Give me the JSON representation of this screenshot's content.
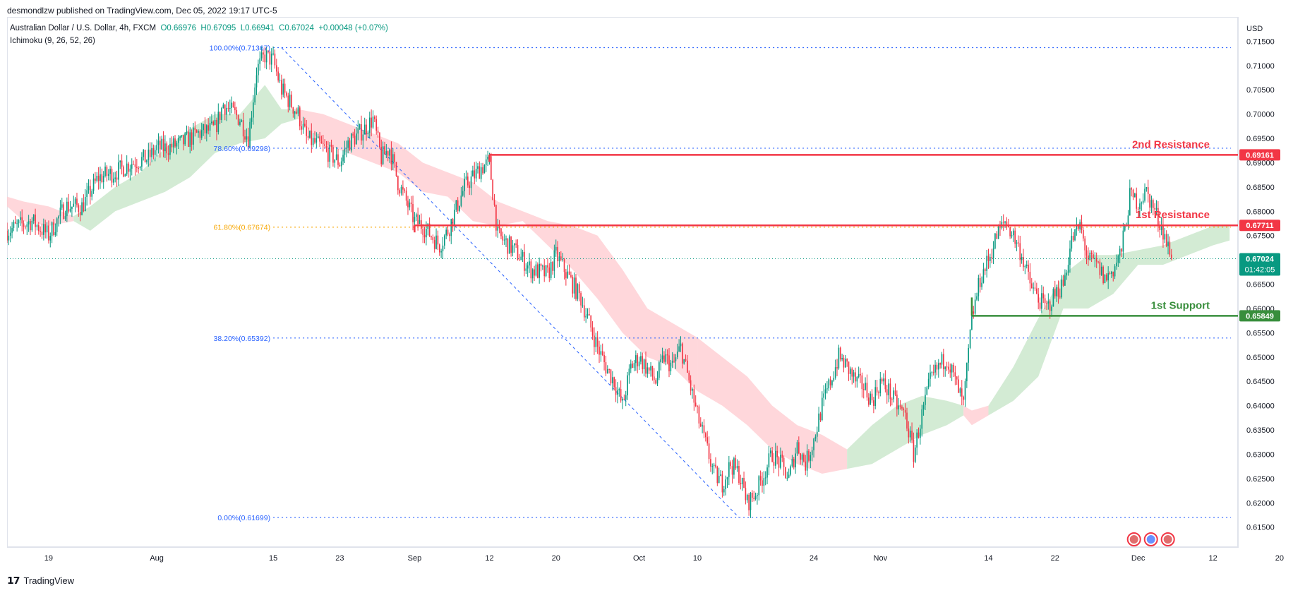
{
  "header": {
    "publisher": "desmondlzw published on TradingView.com, Dec 05, 2022 19:17 UTC-5"
  },
  "symbol": {
    "name": "Australian Dollar / U.S. Dollar, 4h, FXCM",
    "open": "O0.66976",
    "high": "H0.67095",
    "low": "L0.66941",
    "close": "C0.67024",
    "change": "+0.00048 (+0.07%)"
  },
  "indicator": "Ichimoku (9, 26, 52, 26)",
  "footer": {
    "brand": "TradingView",
    "logo": "tv-logo-icon"
  },
  "colors": {
    "up": "#089981",
    "down": "#f23645",
    "fib_blue": "#2962ff",
    "fib_orange": "#f7a600",
    "resistance": "#f23645",
    "support": "#388e3c",
    "cloud_bull": "#c8e6c9",
    "cloud_bear": "#ffcdd2"
  },
  "chart_data": {
    "type": "candlestick",
    "currency": "USD",
    "y_range": [
      0.612,
      0.717
    ],
    "y_ticks": [
      "0.71500",
      "0.71000",
      "0.70500",
      "0.70000",
      "0.69500",
      "0.69000",
      "0.68500",
      "0.68000",
      "0.67500",
      "0.67000",
      "0.66500",
      "0.66000",
      "0.65500",
      "0.65000",
      "0.64500",
      "0.64000",
      "0.63500",
      "0.63000",
      "0.62500",
      "0.62000",
      "0.61500"
    ],
    "x_ticks": [
      {
        "label": "19",
        "x": 0
      },
      {
        "label": "Aug",
        "x": 13
      },
      {
        "label": "15",
        "x": 27
      },
      {
        "label": "23",
        "x": 35
      },
      {
        "label": "Sep",
        "x": 44
      },
      {
        "label": "12",
        "x": 53
      },
      {
        "label": "20",
        "x": 61
      },
      {
        "label": "Oct",
        "x": 71
      },
      {
        "label": "10",
        "x": 78
      },
      {
        "label": "24",
        "x": 92
      },
      {
        "label": "Nov",
        "x": 100
      },
      {
        "label": "14",
        "x": 113
      },
      {
        "label": "22",
        "x": 121
      },
      {
        "label": "Dec",
        "x": 131
      },
      {
        "label": "12",
        "x": 140
      },
      {
        "label": "20",
        "x": 148
      }
    ],
    "x_range": [
      -5,
      143
    ],
    "last_x": 135,
    "price_path": [
      [
        -5,
        0.676
      ],
      [
        -2,
        0.678
      ],
      [
        0,
        0.675
      ],
      [
        2,
        0.681
      ],
      [
        4,
        0.681
      ],
      [
        6,
        0.687
      ],
      [
        8,
        0.688
      ],
      [
        10,
        0.69
      ],
      [
        12,
        0.691
      ],
      [
        13,
        0.693
      ],
      [
        14,
        0.693
      ],
      [
        16,
        0.694
      ],
      [
        18,
        0.696
      ],
      [
        20,
        0.697
      ],
      [
        21,
        0.702
      ],
      [
        23,
        0.699
      ],
      [
        24,
        0.695
      ],
      [
        25,
        0.709
      ],
      [
        26,
        0.712
      ],
      [
        27,
        0.711
      ],
      [
        28,
        0.705
      ],
      [
        30,
        0.7
      ],
      [
        31,
        0.695
      ],
      [
        33,
        0.693
      ],
      [
        35,
        0.69
      ],
      [
        36,
        0.694
      ],
      [
        38,
        0.697
      ],
      [
        39,
        0.699
      ],
      [
        40,
        0.691
      ],
      [
        41,
        0.693
      ],
      [
        42,
        0.686
      ],
      [
        43,
        0.682
      ],
      [
        44,
        0.678
      ],
      [
        45,
        0.677
      ],
      [
        46,
        0.675
      ],
      [
        47,
        0.673
      ],
      [
        48,
        0.676
      ],
      [
        50,
        0.685
      ],
      [
        52,
        0.689
      ],
      [
        53,
        0.69
      ],
      [
        54,
        0.675
      ],
      [
        56,
        0.672
      ],
      [
        57,
        0.67
      ],
      [
        58,
        0.668
      ],
      [
        60,
        0.667
      ],
      [
        61,
        0.671
      ],
      [
        63,
        0.665
      ],
      [
        64,
        0.662
      ],
      [
        66,
        0.652
      ],
      [
        67,
        0.648
      ],
      [
        68,
        0.645
      ],
      [
        69,
        0.64
      ],
      [
        70,
        0.648
      ],
      [
        71,
        0.65
      ],
      [
        73,
        0.645
      ],
      [
        74,
        0.65
      ],
      [
        75,
        0.648
      ],
      [
        76,
        0.652
      ],
      [
        77,
        0.645
      ],
      [
        78,
        0.638
      ],
      [
        79,
        0.632
      ],
      [
        80,
        0.626
      ],
      [
        81,
        0.624
      ],
      [
        82,
        0.628
      ],
      [
        83,
        0.626
      ],
      [
        84,
        0.62
      ],
      [
        85,
        0.622
      ],
      [
        86,
        0.626
      ],
      [
        87,
        0.63
      ],
      [
        88,
        0.628
      ],
      [
        89,
        0.625
      ],
      [
        90,
        0.632
      ],
      [
        91,
        0.628
      ],
      [
        92,
        0.633
      ],
      [
        93,
        0.64
      ],
      [
        94,
        0.645
      ],
      [
        95,
        0.65
      ],
      [
        96,
        0.648
      ],
      [
        97,
        0.645
      ],
      [
        98,
        0.644
      ],
      [
        99,
        0.641
      ],
      [
        100,
        0.645
      ],
      [
        101,
        0.643
      ],
      [
        102,
        0.64
      ],
      [
        103,
        0.638
      ],
      [
        104,
        0.63
      ],
      [
        105,
        0.638
      ],
      [
        106,
        0.645
      ],
      [
        107,
        0.648
      ],
      [
        108,
        0.65
      ],
      [
        109,
        0.645
      ],
      [
        110,
        0.64
      ],
      [
        111,
        0.658
      ],
      [
        112,
        0.666
      ],
      [
        113,
        0.67
      ],
      [
        114,
        0.675
      ],
      [
        115,
        0.678
      ],
      [
        116,
        0.675
      ],
      [
        117,
        0.671
      ],
      [
        118,
        0.665
      ],
      [
        119,
        0.662
      ],
      [
        120,
        0.66
      ],
      [
        121,
        0.663
      ],
      [
        122,
        0.665
      ],
      [
        123,
        0.674
      ],
      [
        124,
        0.677
      ],
      [
        125,
        0.67
      ],
      [
        126,
        0.669
      ],
      [
        127,
        0.666
      ],
      [
        128,
        0.668
      ],
      [
        129,
        0.672
      ],
      [
        130,
        0.683
      ],
      [
        131,
        0.682
      ],
      [
        132,
        0.684
      ],
      [
        133,
        0.68
      ],
      [
        134,
        0.676
      ],
      [
        135,
        0.6702
      ]
    ],
    "cloud": [
      {
        "from": -5,
        "to": 3,
        "kind": "bear",
        "points": [
          [
            -5,
            0.683,
            0.681
          ],
          [
            -3,
            0.682,
            0.678
          ],
          [
            0,
            0.681,
            0.677
          ],
          [
            3,
            0.679,
            0.678
          ]
        ]
      },
      {
        "from": 3,
        "to": 30,
        "kind": "bull",
        "points": [
          [
            3,
            0.679,
            0.678
          ],
          [
            5,
            0.681,
            0.676
          ],
          [
            8,
            0.685,
            0.68
          ],
          [
            11,
            0.688,
            0.682
          ],
          [
            14,
            0.693,
            0.684
          ],
          [
            17,
            0.697,
            0.687
          ],
          [
            20,
            0.7,
            0.692
          ],
          [
            23,
            0.7,
            0.694
          ],
          [
            26,
            0.706,
            0.695
          ],
          [
            28,
            0.701,
            0.698
          ],
          [
            30,
            0.701,
            0.699
          ]
        ]
      },
      {
        "from": 30,
        "to": 78,
        "kind": "bear",
        "points": [
          [
            30,
            0.701,
            0.699
          ],
          [
            33,
            0.7,
            0.694
          ],
          [
            36,
            0.698,
            0.692
          ],
          [
            39,
            0.696,
            0.69
          ],
          [
            42,
            0.694,
            0.688
          ],
          [
            45,
            0.69,
            0.684
          ],
          [
            48,
            0.688,
            0.683
          ],
          [
            51,
            0.686,
            0.678
          ],
          [
            54,
            0.682,
            0.677
          ],
          [
            57,
            0.68,
            0.678
          ],
          [
            60,
            0.678,
            0.673
          ],
          [
            63,
            0.677,
            0.668
          ],
          [
            66,
            0.675,
            0.662
          ],
          [
            69,
            0.668,
            0.655
          ],
          [
            72,
            0.66,
            0.65
          ],
          [
            75,
            0.657,
            0.648
          ],
          [
            78,
            0.654,
            0.643
          ]
        ]
      },
      {
        "from": 78,
        "to": 96,
        "kind": "bear",
        "points": [
          [
            78,
            0.654,
            0.643
          ],
          [
            81,
            0.65,
            0.64
          ],
          [
            84,
            0.646,
            0.636
          ],
          [
            87,
            0.64,
            0.631
          ],
          [
            90,
            0.636,
            0.628
          ],
          [
            93,
            0.634,
            0.626
          ],
          [
            96,
            0.631,
            0.627
          ]
        ]
      },
      {
        "from": 96,
        "to": 110,
        "kind": "bull",
        "points": [
          [
            96,
            0.631,
            0.627
          ],
          [
            99,
            0.636,
            0.628
          ],
          [
            102,
            0.64,
            0.631
          ],
          [
            105,
            0.642,
            0.634
          ],
          [
            108,
            0.641,
            0.636
          ],
          [
            110,
            0.64,
            0.638
          ]
        ]
      },
      {
        "from": 110,
        "to": 113,
        "kind": "bear",
        "points": [
          [
            110,
            0.64,
            0.638
          ],
          [
            111,
            0.639,
            0.636
          ],
          [
            113,
            0.64,
            0.638
          ]
        ]
      },
      {
        "from": 113,
        "to": 142,
        "kind": "bull",
        "points": [
          [
            113,
            0.64,
            0.638
          ],
          [
            116,
            0.648,
            0.641
          ],
          [
            119,
            0.658,
            0.646
          ],
          [
            122,
            0.667,
            0.66
          ],
          [
            125,
            0.671,
            0.66
          ],
          [
            128,
            0.671,
            0.663
          ],
          [
            131,
            0.672,
            0.669
          ],
          [
            134,
            0.673,
            0.669
          ],
          [
            137,
            0.675,
            0.671
          ],
          [
            140,
            0.677,
            0.673
          ],
          [
            142,
            0.677,
            0.674
          ]
        ]
      }
    ],
    "fib": [
      {
        "label": "100.00%(0.71367)",
        "y": 0.71367,
        "color": "blue"
      },
      {
        "label": "78.60%(0.69298)",
        "y": 0.69298,
        "color": "blue"
      },
      {
        "label": "61.80%(0.67674)",
        "y": 0.67674,
        "color": "orange"
      },
      {
        "label": "38.20%(0.65392)",
        "y": 0.65392,
        "color": "blue"
      },
      {
        "label": "0.00%(0.61699)",
        "y": 0.61699,
        "color": "blue"
      }
    ],
    "fib_start_x": 27,
    "trend_line": [
      [
        28,
        0.71367
      ],
      [
        83,
        0.61699
      ]
    ],
    "levels": [
      {
        "name": "2nd Resistance",
        "value": 0.69161,
        "label": "0.69161",
        "kind": "resistance",
        "from_x": 53
      },
      {
        "name": "1st Resistance",
        "value": 0.67711,
        "label": "0.67711",
        "kind": "resistance",
        "from_x": 44
      },
      {
        "name": "1st Support",
        "value": 0.65849,
        "label": "0.65849",
        "kind": "support",
        "from_x": 111
      }
    ],
    "last_price": {
      "value": 0.67024,
      "label": "0.67024",
      "countdown": "01:42:05"
    }
  }
}
